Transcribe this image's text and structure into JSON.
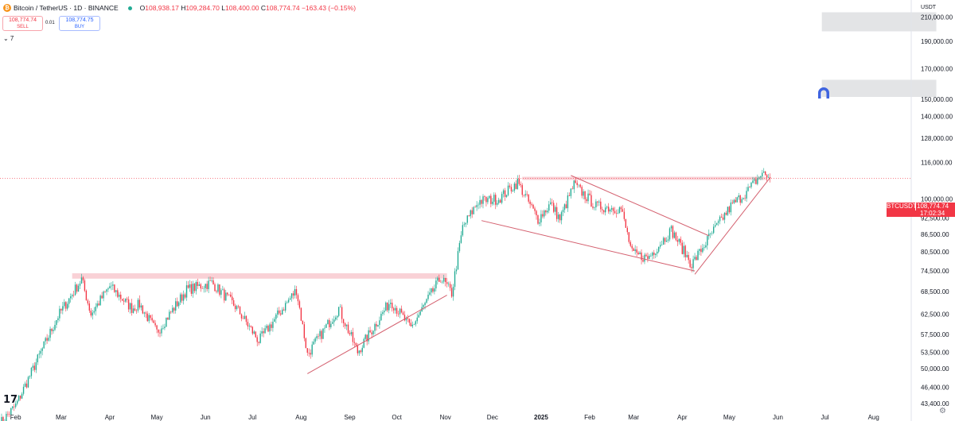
{
  "header": {
    "coin_glyph": "₿",
    "title": "Bitcoin / TetherUS · 1D · BINANCE",
    "open_label": "O",
    "open": "108,938.17",
    "high_label": "H",
    "high": "109,284.70",
    "low_label": "L",
    "low": "108,400.00",
    "close_label": "C",
    "close": "108,774.74",
    "change": "−163.43 (−0.15%)"
  },
  "trade": {
    "sell_price": "108,774.74",
    "sell_label": "SELL",
    "spread": "0.01",
    "buy_price": "108,774.75",
    "buy_label": "BUY"
  },
  "indicator_toggle": "⌄ 7",
  "axis": {
    "currency": "USDT"
  },
  "price_label": {
    "symbol": "BTCUSDT",
    "price": "108,774.74",
    "countdown": "17:02:34"
  },
  "colors": {
    "up": "#22ab94",
    "down": "#f23645",
    "trend": "#d4606f",
    "zone": "#f8c9cf",
    "box": "#e3e4e6",
    "icon": "#3f64e0"
  },
  "icons": {
    "logo": "tradingview-logo-icon",
    "magnet": "magnet-icon",
    "settings": "gear-icon"
  },
  "chart_data": {
    "type": "candlestick",
    "symbol": "BTCUSDT",
    "timeframe": "1D",
    "y_scale": "log",
    "ylim": [
      42000,
      225000
    ],
    "y_ticks": [
      {
        "value": 210000,
        "label": "210,000.00"
      },
      {
        "value": 190000,
        "label": "190,000.00"
      },
      {
        "value": 170000,
        "label": "170,000.00"
      },
      {
        "value": 150000,
        "label": "150,000.00"
      },
      {
        "value": 140000,
        "label": "140,000.00"
      },
      {
        "value": 128000,
        "label": "128,000.00"
      },
      {
        "value": 116000,
        "label": "116,000.00"
      },
      {
        "value": 100000,
        "label": "100,000.00"
      },
      {
        "value": 92500,
        "label": "92,500.00"
      },
      {
        "value": 86500,
        "label": "86,500.00"
      },
      {
        "value": 80500,
        "label": "80,500.00"
      },
      {
        "value": 74500,
        "label": "74,500.00"
      },
      {
        "value": 68500,
        "label": "68,500.00"
      },
      {
        "value": 62500,
        "label": "62,500.00"
      },
      {
        "value": 57500,
        "label": "57,500.00"
      },
      {
        "value": 53500,
        "label": "53,500.00"
      },
      {
        "value": 50000,
        "label": "50,000.00"
      },
      {
        "value": 46400,
        "label": "46,400.00"
      },
      {
        "value": 43400,
        "label": "43,400.00"
      }
    ],
    "x_range": [
      "2024-01-22",
      "2025-08-25"
    ],
    "x_ticks": [
      {
        "date": "2024-02-01",
        "label": "Feb"
      },
      {
        "date": "2024-03-01",
        "label": "Mar"
      },
      {
        "date": "2024-04-01",
        "label": "Apr"
      },
      {
        "date": "2024-05-01",
        "label": "May"
      },
      {
        "date": "2024-06-01",
        "label": "Jun"
      },
      {
        "date": "2024-07-01",
        "label": "Jul"
      },
      {
        "date": "2024-08-01",
        "label": "Aug"
      },
      {
        "date": "2024-09-01",
        "label": "Sep"
      },
      {
        "date": "2024-10-01",
        "label": "Oct"
      },
      {
        "date": "2024-11-01",
        "label": "Nov"
      },
      {
        "date": "2024-12-01",
        "label": "Dec"
      },
      {
        "date": "2025-01-01",
        "label": "2025",
        "bold": true
      },
      {
        "date": "2025-02-01",
        "label": "Feb"
      },
      {
        "date": "2025-03-01",
        "label": "Mar"
      },
      {
        "date": "2025-04-01",
        "label": "Apr"
      },
      {
        "date": "2025-05-01",
        "label": "May"
      },
      {
        "date": "2025-06-01",
        "label": "Jun"
      },
      {
        "date": "2025-07-01",
        "label": "Jul"
      },
      {
        "date": "2025-08-01",
        "label": "Aug"
      }
    ],
    "price_path": [
      [
        "2024-01-22",
        40000
      ],
      [
        "2024-02-01",
        43000
      ],
      [
        "2024-02-15",
        52000
      ],
      [
        "2024-02-28",
        62000
      ],
      [
        "2024-03-14",
        72000
      ],
      [
        "2024-03-20",
        62500
      ],
      [
        "2024-04-01",
        70000
      ],
      [
        "2024-04-15",
        64000
      ],
      [
        "2024-04-20",
        65000
      ],
      [
        "2024-05-01",
        58000
      ],
      [
        "2024-05-20",
        69000
      ],
      [
        "2024-06-05",
        71000
      ],
      [
        "2024-06-20",
        64500
      ],
      [
        "2024-07-05",
        56000
      ],
      [
        "2024-07-29",
        69000
      ],
      [
        "2024-08-05",
        53000
      ],
      [
        "2024-08-25",
        64000
      ],
      [
        "2024-09-06",
        53500
      ],
      [
        "2024-09-27",
        66000
      ],
      [
        "2024-10-10",
        59000
      ],
      [
        "2024-10-29",
        72500
      ],
      [
        "2024-11-05",
        68000
      ],
      [
        "2024-11-12",
        89000
      ],
      [
        "2024-11-22",
        99000
      ],
      [
        "2024-12-05",
        100000
      ],
      [
        "2024-12-17",
        107000
      ],
      [
        "2024-12-30",
        92000
      ],
      [
        "2025-01-07",
        98000
      ],
      [
        "2025-01-13",
        92000
      ],
      [
        "2025-01-22",
        106000
      ],
      [
        "2025-02-05",
        97000
      ],
      [
        "2025-02-21",
        96000
      ],
      [
        "2025-02-28",
        80000
      ],
      [
        "2025-03-10",
        78500
      ],
      [
        "2025-03-25",
        88000
      ],
      [
        "2025-04-07",
        76500
      ],
      [
        "2025-04-20",
        87000
      ],
      [
        "2025-05-02",
        97000
      ],
      [
        "2025-05-13",
        103500
      ],
      [
        "2025-05-22",
        111000
      ],
      [
        "2025-05-27",
        108774.74
      ]
    ],
    "drawings": {
      "resistance_zones": [
        {
          "from": "2024-03-08",
          "to": "2024-11-02",
          "low": 72200,
          "high": 73800
        },
        {
          "from": "2024-12-20",
          "to": "2025-05-25",
          "low": 108000,
          "high": 109400
        }
      ],
      "trendlines": [
        {
          "from": [
            "2024-08-05",
            49000
          ],
          "to": [
            "2024-11-02",
            67500
          ]
        },
        {
          "from": [
            "2024-11-24",
            91500
          ],
          "to": [
            "2025-04-09",
            74500
          ]
        },
        {
          "from": [
            "2025-01-20",
            110000
          ],
          "to": [
            "2025-04-18",
            86000
          ]
        },
        {
          "from": [
            "2025-04-09",
            73500
          ],
          "to": [
            "2025-05-27",
            109000
          ]
        }
      ],
      "target_boxes": [
        {
          "from": "2025-06-29",
          "to": "2025-09-10",
          "low": 198000,
          "high": 214000
        },
        {
          "from": "2025-06-29",
          "to": "2025-09-10",
          "low": 151500,
          "high": 162500
        }
      ],
      "current_price_line": 108774.74
    }
  }
}
